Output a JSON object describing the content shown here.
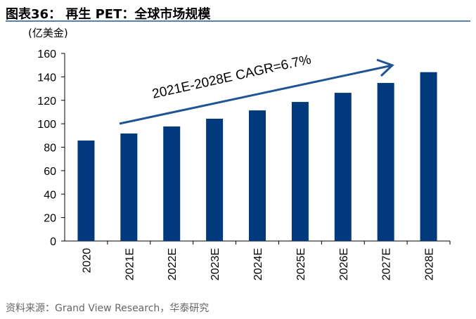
{
  "header": {
    "title": "图表36：  再生 PET：全球市场规模"
  },
  "footer": {
    "source": "资料来源：Grand View Research，华泰研究"
  },
  "chart_data": {
    "type": "bar",
    "title": "",
    "ylabel": "(亿美金)",
    "xlabel": "",
    "categories": [
      "2020",
      "2021E",
      "2022E",
      "2023E",
      "2024E",
      "2025E",
      "2026E",
      "2027E",
      "2028E"
    ],
    "values": [
      85.7,
      91.7,
      97.7,
      104.3,
      111.4,
      118.6,
      126.4,
      134.8,
      144.0
    ],
    "ylim": [
      0,
      160
    ],
    "yticks": [
      0,
      20,
      40,
      60,
      80,
      100,
      120,
      140,
      160
    ],
    "grid": false,
    "bar_color": "#003a7d",
    "annotation": {
      "text": "2021E-2028E CAGR=6.7%",
      "color": "#1f5596"
    }
  }
}
